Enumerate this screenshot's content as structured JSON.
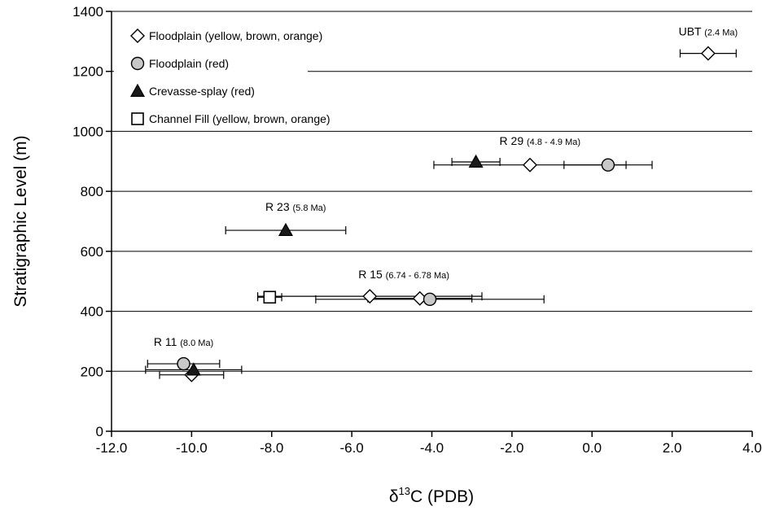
{
  "chart_data": {
    "type": "scatter",
    "xlabel_prefix": "δ",
    "xlabel_sup": "13",
    "xlabel_main": "C (PDB)",
    "ylabel": "Stratigraphic Level (m)",
    "xlim": [
      -12,
      4
    ],
    "ylim": [
      0,
      1400
    ],
    "xticks": [
      -12,
      -10,
      -8,
      -6,
      -4,
      -2,
      0,
      2,
      4
    ],
    "xtick_labels": [
      "-12.0",
      "-10.0",
      "-8.0",
      "-6.0",
      "-4.0",
      "-2.0",
      "0.0",
      "2.0",
      "4.0"
    ],
    "yticks": [
      0,
      200,
      400,
      600,
      800,
      1000,
      1200,
      1400
    ],
    "ytick_labels": [
      "0",
      "200",
      "400",
      "600",
      "800",
      "1000",
      "1200",
      "1400"
    ],
    "grid": "horizontal",
    "legend_position": "top-left",
    "series": [
      {
        "name": "Floodplain (yellow, brown, orange)",
        "marker": "diamond",
        "fill": "#ffffff",
        "points": [
          {
            "x": 2.9,
            "y": 1260,
            "xerr": 0.7
          },
          {
            "x": -1.55,
            "y": 888,
            "xerr": 2.4
          },
          {
            "x": -5.55,
            "y": 450,
            "xerr": 2.8
          },
          {
            "x": -4.3,
            "y": 443,
            "xerr": 1.3
          },
          {
            "x": -10.0,
            "y": 188,
            "xerr": 0.8
          }
        ]
      },
      {
        "name": "Floodplain (red)",
        "marker": "circle",
        "fill": "#c8c8c8",
        "points": [
          {
            "x": 0.4,
            "y": 888,
            "xerr": 1.1
          },
          {
            "x": -4.05,
            "y": 440,
            "xerr": 2.85
          },
          {
            "x": -10.2,
            "y": 225,
            "xerr": 0.9
          }
        ]
      },
      {
        "name": "Crevasse-splay (red)",
        "marker": "triangle",
        "fill": "#1a1a1a",
        "points": [
          {
            "x": -2.9,
            "y": 898,
            "xerr": 0.6
          },
          {
            "x": -7.65,
            "y": 670,
            "xerr": 1.5
          },
          {
            "x": -9.95,
            "y": 205,
            "xerr": 1.2
          }
        ]
      },
      {
        "name": "Channel Fill (yellow, brown, orange)",
        "marker": "square",
        "fill": "#ffffff",
        "points": [
          {
            "x": -8.05,
            "y": 447,
            "xerr": 0.3
          }
        ]
      }
    ],
    "annotations": [
      {
        "main": "UBT",
        "sub": "(2.4 Ma)",
        "x": 2.9,
        "y": 1320
      },
      {
        "main": "R 29",
        "sub": "(4.8 - 4.9 Ma)",
        "x": -1.3,
        "y": 955
      },
      {
        "main": "R 23",
        "sub": "(5.8 Ma)",
        "x": -7.4,
        "y": 735
      },
      {
        "main": "R 15",
        "sub": "(6.74 - 6.78 Ma)",
        "x": -4.7,
        "y": 510
      },
      {
        "main": "R 11",
        "sub": "(8.0 Ma)",
        "x": -10.2,
        "y": 285
      }
    ]
  }
}
